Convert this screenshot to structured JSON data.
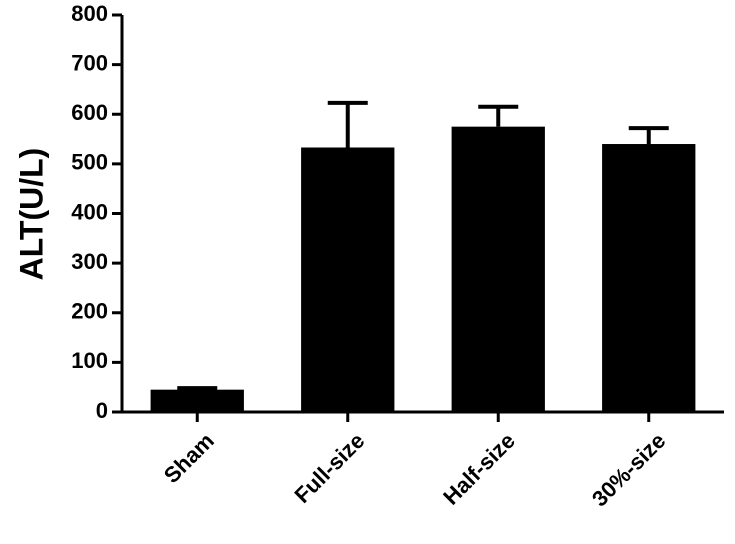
{
  "chart_data": {
    "type": "bar",
    "y_label": "ALT(U/L)",
    "categories": [
      "Sham",
      "Full-size",
      "Half-size",
      "30%-size"
    ],
    "values": [
      45,
      533,
      575,
      540
    ],
    "errors": [
      3,
      90,
      40,
      32
    ],
    "color": "#000000",
    "ylim": [
      0,
      800
    ],
    "yticks": [
      0,
      100,
      200,
      300,
      400,
      500,
      600,
      700,
      800
    ],
    "grid": false
  }
}
